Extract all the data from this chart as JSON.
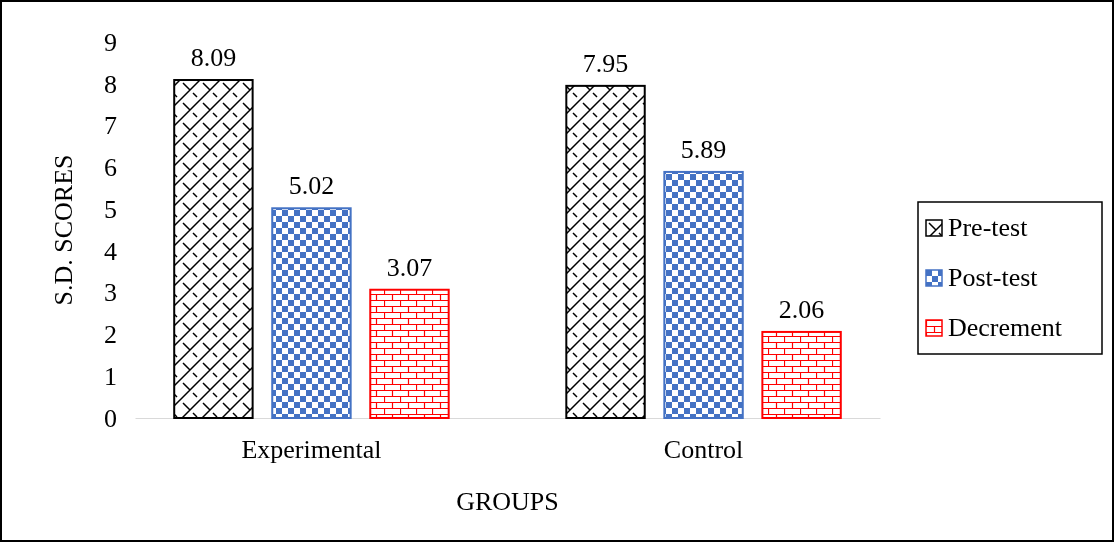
{
  "chart_data": {
    "type": "bar",
    "xlabel": "GROUPS",
    "ylabel": "S.D. SCORES",
    "categories": [
      "Experimental",
      "Control"
    ],
    "series": [
      {
        "name": "Pre-test",
        "color": "#000000",
        "values": [
          8.09,
          7.95
        ]
      },
      {
        "name": "Post-test",
        "color": "#4472c4",
        "values": [
          5.02,
          5.89
        ]
      },
      {
        "name": "Decrement",
        "color": "#ff0000",
        "values": [
          3.07,
          2.06
        ]
      }
    ],
    "ylim": [
      0,
      9
    ],
    "yticks": [
      0,
      1,
      2,
      3,
      4,
      5,
      6,
      7,
      8,
      9
    ],
    "data_labels": true,
    "legend": "right",
    "grid": false
  }
}
